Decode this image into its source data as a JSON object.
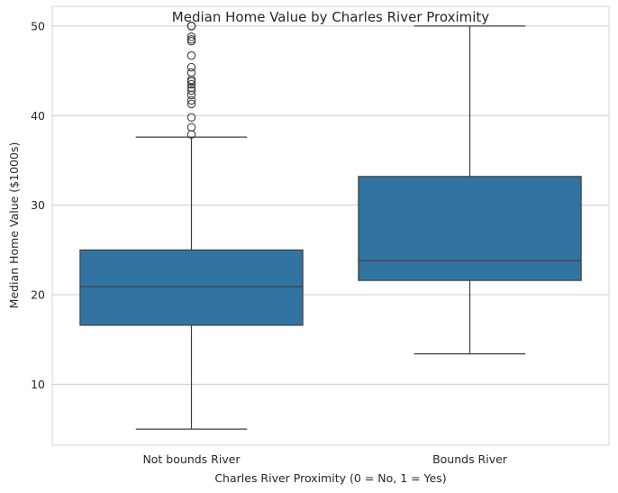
{
  "chart_data": {
    "type": "boxplot",
    "title": "Median Home Value by Charles River Proximity",
    "xlabel": "Charles River Proximity (0 = No, 1 = Yes)",
    "ylabel": "Median Home Value ($1000s)",
    "ylim": [
      3.2,
      52.2
    ],
    "yticks": [
      10,
      20,
      30,
      40,
      50
    ],
    "grid": true,
    "box_color": "#3274a1",
    "line_color": "#3d3d3d",
    "grid_color": "#cccccc",
    "categories": [
      "Not bounds River",
      "Bounds River"
    ],
    "boxes": [
      {
        "category": "Not bounds River",
        "whisker_low": 5.0,
        "q1": 16.6,
        "median": 20.9,
        "q3": 25.0,
        "whisker_high": 37.6,
        "outliers": [
          37.9,
          38.7,
          39.8,
          41.3,
          41.7,
          42.3,
          42.8,
          43.1,
          43.5,
          43.8,
          44.0,
          44.8,
          45.4,
          46.7,
          48.3,
          48.5,
          48.8,
          50.0,
          50.0,
          50.0,
          50.0
        ]
      },
      {
        "category": "Bounds River",
        "whisker_low": 13.4,
        "q1": 21.6,
        "median": 23.8,
        "q3": 33.2,
        "whisker_high": 50.0,
        "outliers": []
      }
    ]
  }
}
